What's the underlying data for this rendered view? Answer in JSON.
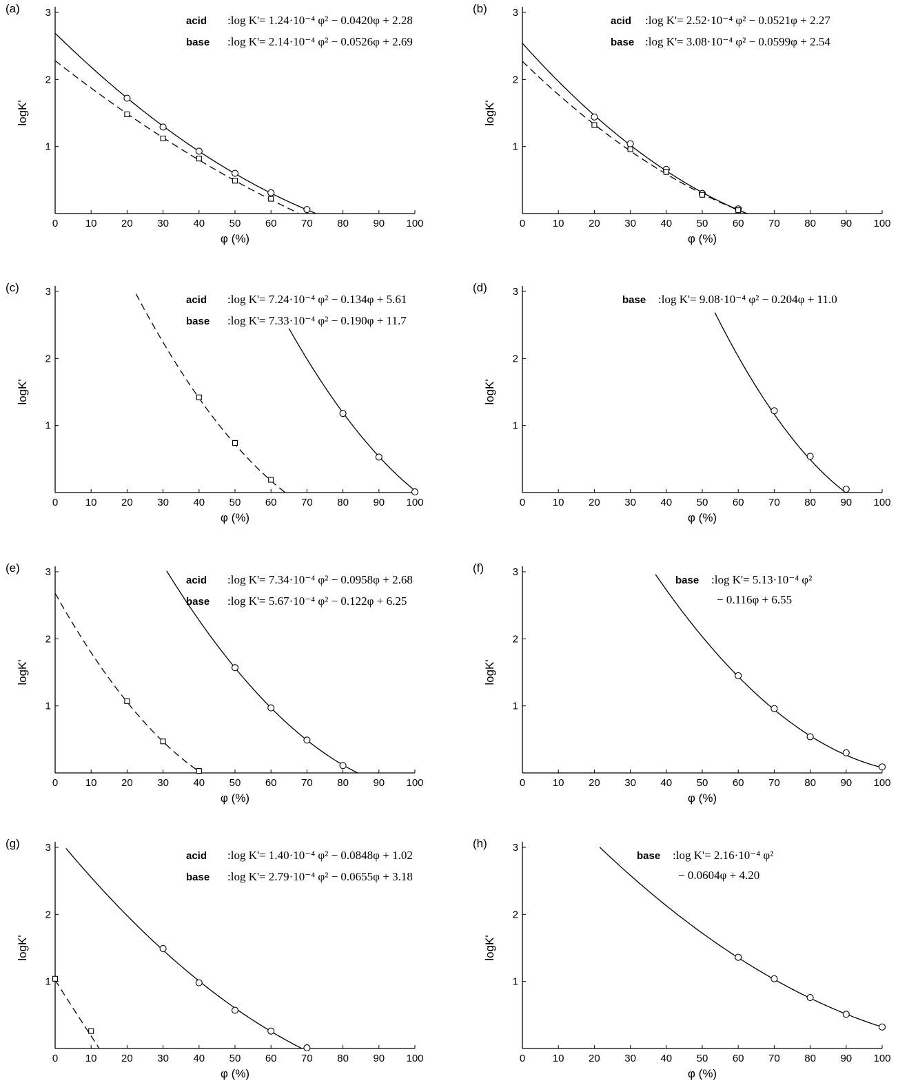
{
  "chart_data": [
    {
      "panel": "(a)",
      "type": "scatter",
      "xlabel": "φ (%)",
      "ylabel": "logK'",
      "xlim": [
        0,
        100
      ],
      "ylim": [
        0,
        3
      ],
      "xticks": [
        "0",
        "10",
        "20",
        "30",
        "40",
        "50",
        "60",
        "70",
        "80",
        "90",
        "100"
      ],
      "yticks": [
        "1",
        "2",
        "3"
      ],
      "equations": [
        {
          "kind": "acid",
          "text": ":log K'= 1.24·10⁻⁴ φ² − 0.0420φ + 2.28"
        },
        {
          "kind": "base",
          "text": ":log K'= 2.14·10⁻⁴ φ² − 0.0526φ + 2.69"
        }
      ],
      "series": [
        {
          "role": "base",
          "marker": "circle",
          "line": "solid",
          "coef": [
            0.000214,
            -0.0526,
            2.69
          ],
          "range": [
            0,
            73.5
          ],
          "x": [
            20,
            30,
            40,
            50,
            60,
            70
          ],
          "y": [
            1.72,
            1.29,
            0.93,
            0.6,
            0.31,
            0.06
          ]
        },
        {
          "role": "acid",
          "marker": "square",
          "line": "dashed",
          "coef": [
            0.000124,
            -0.042,
            2.28
          ],
          "range": [
            0,
            67.5
          ],
          "x": [
            20,
            30,
            40,
            50,
            60
          ],
          "y": [
            1.48,
            1.12,
            0.82,
            0.49,
            0.22
          ]
        }
      ]
    },
    {
      "panel": "(b)",
      "type": "scatter",
      "xlabel": "φ (%)",
      "ylabel": "logK'",
      "xlim": [
        0,
        100
      ],
      "ylim": [
        0,
        3
      ],
      "xticks": [
        "0",
        "10",
        "20",
        "30",
        "40",
        "50",
        "60",
        "70",
        "80",
        "90",
        "100"
      ],
      "yticks": [
        "1",
        "2",
        "3"
      ],
      "equations": [
        {
          "kind": "acid",
          "text": ":log K'= 2.52·10⁻⁴ φ² − 0.0521φ + 2.27"
        },
        {
          "kind": "base",
          "text": ":log K'= 3.08·10⁻⁴ φ² − 0.0599φ + 2.54"
        }
      ],
      "series": [
        {
          "role": "base",
          "marker": "circle",
          "line": "solid",
          "coef": [
            0.000308,
            -0.0599,
            2.54
          ],
          "range": [
            0,
            62.5
          ],
          "x": [
            20,
            30,
            40,
            50,
            60
          ],
          "y": [
            1.44,
            1.04,
            0.66,
            0.3,
            0.07
          ]
        },
        {
          "role": "acid",
          "marker": "square",
          "line": "dashed",
          "coef": [
            0.000252,
            -0.0521,
            2.27
          ],
          "range": [
            0,
            62
          ],
          "x": [
            20,
            30,
            40,
            50,
            60
          ],
          "y": [
            1.32,
            0.96,
            0.62,
            0.28,
            0.05
          ]
        }
      ]
    },
    {
      "panel": "(c)",
      "type": "scatter",
      "xlabel": "φ (%)",
      "ylabel": "logK'",
      "xlim": [
        0,
        100
      ],
      "ylim": [
        0,
        3
      ],
      "xticks": [
        "0",
        "10",
        "20",
        "30",
        "40",
        "50",
        "60",
        "70",
        "80",
        "90",
        "100"
      ],
      "yticks": [
        "1",
        "2",
        "3"
      ],
      "equations": [
        {
          "kind": "acid",
          "text": ":log K'= 7.24·10⁻⁴ φ² − 0.134φ + 5.61"
        },
        {
          "kind": "base",
          "text": ":log K'= 7.33·10⁻⁴ φ² − 0.190φ + 11.7"
        }
      ],
      "series": [
        {
          "role": "base",
          "marker": "circle",
          "line": "solid",
          "coef": [
            0.000733,
            -0.19,
            11.7
          ],
          "range": [
            65,
            100
          ],
          "x": [
            80,
            90,
            100
          ],
          "y": [
            1.18,
            0.53,
            0.01
          ]
        },
        {
          "role": "acid",
          "marker": "square",
          "line": "dashed",
          "coef": [
            0.000724,
            -0.134,
            5.61
          ],
          "range": [
            22.5,
            64
          ],
          "x": [
            40,
            50,
            60
          ],
          "y": [
            1.42,
            0.74,
            0.19
          ]
        }
      ]
    },
    {
      "panel": "(d)",
      "type": "scatter",
      "xlabel": "φ (%)",
      "ylabel": "logK'",
      "xlim": [
        0,
        100
      ],
      "ylim": [
        0,
        3
      ],
      "xticks": [
        "0",
        "10",
        "20",
        "30",
        "40",
        "50",
        "60",
        "70",
        "80",
        "90",
        "100"
      ],
      "yticks": [
        "1",
        "2",
        "3"
      ],
      "equations": [
        {
          "kind": "base",
          "text": ":log K'= 9.08·10⁻⁴ φ² − 0.204φ + 11.0"
        }
      ],
      "series": [
        {
          "role": "base",
          "marker": "circle",
          "line": "solid",
          "coef": [
            0.000908,
            -0.204,
            11.0
          ],
          "range": [
            53.5,
            91
          ],
          "x": [
            70,
            80,
            90
          ],
          "y": [
            1.22,
            0.54,
            0.05
          ]
        }
      ]
    },
    {
      "panel": "(e)",
      "type": "scatter",
      "xlabel": "φ (%)",
      "ylabel": "logK'",
      "xlim": [
        0,
        100
      ],
      "ylim": [
        0,
        3
      ],
      "xticks": [
        "0",
        "10",
        "20",
        "30",
        "40",
        "50",
        "60",
        "70",
        "80",
        "90",
        "100"
      ],
      "yticks": [
        "1",
        "2",
        "3"
      ],
      "equations": [
        {
          "kind": "acid",
          "text": ":log K'= 7.34·10⁻⁴ φ² − 0.0958φ + 2.68"
        },
        {
          "kind": "base",
          "text": ":log K'= 5.67·10⁻⁴ φ² − 0.122φ + 6.25"
        }
      ],
      "series": [
        {
          "role": "base",
          "marker": "circle",
          "line": "solid",
          "coef": [
            0.000567,
            -0.122,
            6.25
          ],
          "range": [
            31,
            84.5
          ],
          "x": [
            50,
            60,
            70,
            80
          ],
          "y": [
            1.57,
            0.97,
            0.49,
            0.11
          ]
        },
        {
          "role": "acid",
          "marker": "square",
          "line": "dashed",
          "coef": [
            0.000734,
            -0.0958,
            2.68
          ],
          "range": [
            0,
            40.5
          ],
          "x": [
            20,
            30,
            40
          ],
          "y": [
            1.07,
            0.47,
            0.03
          ]
        }
      ]
    },
    {
      "panel": "(f)",
      "type": "scatter",
      "xlabel": "φ (%)",
      "ylabel": "logK'",
      "xlim": [
        0,
        100
      ],
      "ylim": [
        0,
        3
      ],
      "xticks": [
        "0",
        "10",
        "20",
        "30",
        "40",
        "50",
        "60",
        "70",
        "80",
        "90",
        "100"
      ],
      "yticks": [
        "1",
        "2",
        "3"
      ],
      "equations": [
        {
          "kind": "base",
          "text": ":log K'= 5.13·10⁻⁴ φ²",
          "text2": "− 0.116φ + 6.55"
        }
      ],
      "series": [
        {
          "role": "base",
          "marker": "circle",
          "line": "solid",
          "coef": [
            0.000513,
            -0.116,
            6.55
          ],
          "range": [
            37,
            100.5
          ],
          "x": [
            60,
            70,
            80,
            90,
            100
          ],
          "y": [
            1.45,
            0.96,
            0.54,
            0.3,
            0.09
          ]
        }
      ]
    },
    {
      "panel": "(g)",
      "type": "scatter",
      "xlabel": "φ (%)",
      "ylabel": "logK'",
      "xlim": [
        0,
        100
      ],
      "ylim": [
        0,
        3
      ],
      "xticks": [
        "0",
        "10",
        "20",
        "30",
        "40",
        "50",
        "60",
        "70",
        "80",
        "90",
        "100"
      ],
      "yticks": [
        "1",
        "2",
        "3"
      ],
      "equations": [
        {
          "kind": "acid",
          "text": ":log K'= 1.40·10⁻⁴ φ² − 0.0848φ + 1.02"
        },
        {
          "kind": "base",
          "text": ":log K'= 2.79·10⁻⁴ φ² − 0.0655φ + 3.18"
        }
      ],
      "series": [
        {
          "role": "base",
          "marker": "circle",
          "line": "solid",
          "coef": [
            0.000279,
            -0.0655,
            3.18
          ],
          "range": [
            3,
            70
          ],
          "x": [
            30,
            40,
            50,
            60,
            70
          ],
          "y": [
            1.49,
            0.98,
            0.57,
            0.26,
            0.01
          ]
        },
        {
          "role": "acid",
          "marker": "square",
          "line": "dashed",
          "coef": [
            0.00014,
            -0.0848,
            1.02
          ],
          "range": [
            0,
            16.5
          ],
          "x": [
            0,
            10
          ],
          "y": [
            1.04,
            0.26
          ]
        }
      ]
    },
    {
      "panel": "(h)",
      "type": "scatter",
      "xlabel": "φ (%)",
      "ylabel": "logK'",
      "xlim": [
        0,
        100
      ],
      "ylim": [
        0,
        3
      ],
      "xticks": [
        "0",
        "10",
        "20",
        "30",
        "40",
        "50",
        "60",
        "70",
        "80",
        "90",
        "100"
      ],
      "yticks": [
        "1",
        "2",
        "3"
      ],
      "equations": [
        {
          "kind": "base",
          "text": ":log K'= 2.16·10⁻⁴ φ²",
          "text2": "− 0.0604φ + 4.20"
        }
      ],
      "series": [
        {
          "role": "base",
          "marker": "circle",
          "line": "solid",
          "coef": [
            0.000216,
            -0.0604,
            4.2
          ],
          "range": [
            21.5,
            100
          ],
          "x": [
            60,
            70,
            80,
            90,
            100
          ],
          "y": [
            1.36,
            1.04,
            0.76,
            0.51,
            0.32
          ]
        }
      ]
    }
  ]
}
